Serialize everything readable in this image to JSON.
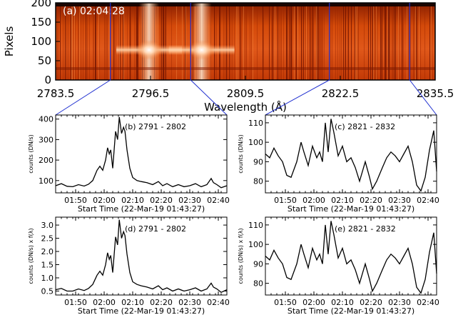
{
  "chart_data": [
    {
      "panel": "a",
      "type": "heatmap",
      "title": "(a) 02:04:28",
      "xlabel": "Wavelength (Å)",
      "ylabel": "Pixels",
      "x_tick_labels": [
        "2783.5",
        "2796.5",
        "2809.5",
        "2822.5",
        "2835.5"
      ],
      "y_tick_labels": [
        "0",
        "50",
        "100",
        "150",
        "200"
      ],
      "xlim": [
        2783.5,
        2835.5
      ],
      "ylim": [
        0,
        200
      ],
      "colormap": "red-temperature",
      "emission_lines": [
        {
          "wavelength": 2796.3,
          "y_center": 78
        },
        {
          "wavelength": 2803.5,
          "y_center": 78
        }
      ],
      "marker_wavelengths": [
        2791,
        2802,
        2821,
        2832
      ]
    },
    {
      "panel": "b",
      "type": "line",
      "title": "(b) 2791 - 2802",
      "xlabel": "Start Time (22-Mar-19 01:43:27)",
      "ylabel": "counts (DN/s)",
      "x_tick_labels": [
        "01:50",
        "02:00",
        "02:10",
        "02:20",
        "02:30",
        "02:40"
      ],
      "x_tick_values": [
        7,
        17,
        27,
        37,
        47,
        57
      ],
      "xlim": [
        0,
        60
      ],
      "y_tick_labels": [
        "100",
        "200",
        "300",
        "400"
      ],
      "y_tick_values": [
        100,
        200,
        300,
        400
      ],
      "ylim": [
        40,
        420
      ],
      "series": [
        {
          "x": [
            0,
            2,
            4,
            6,
            8,
            10,
            11.5,
            13,
            14.5,
            15.5,
            16.5,
            17.5,
            18.2,
            18.8,
            19.3,
            20,
            21,
            21.7,
            22.3,
            23.1,
            23.8,
            24.3,
            25,
            26,
            27,
            28.5,
            30,
            32,
            34,
            36,
            37.5,
            39,
            41,
            43,
            45,
            47,
            49,
            51,
            53,
            54.5,
            55.3,
            56.5,
            58,
            60
          ],
          "values": [
            75,
            85,
            72,
            70,
            80,
            73,
            82,
            100,
            150,
            170,
            150,
            200,
            260,
            230,
            250,
            160,
            340,
            300,
            410,
            330,
            360,
            340,
            250,
            160,
            115,
            100,
            95,
            90,
            80,
            95,
            75,
            85,
            70,
            80,
            70,
            75,
            85,
            70,
            80,
            110,
            90,
            80,
            65,
            75
          ]
        }
      ]
    },
    {
      "panel": "c",
      "type": "line",
      "title": "(c) 2821 - 2832",
      "xlabel": "Start Time (22-Mar-19 01:43:27)",
      "ylabel": "counts (DN/s)",
      "x_tick_labels": [
        "01:50",
        "02:00",
        "02:10",
        "02:20",
        "02:30",
        "02:40"
      ],
      "x_tick_values": [
        7,
        17,
        27,
        37,
        47,
        57
      ],
      "xlim": [
        0,
        60
      ],
      "y_tick_labels": [
        "80",
        "90",
        "100",
        "110"
      ],
      "y_tick_values": [
        80,
        90,
        100,
        110
      ],
      "ylim": [
        74,
        114
      ],
      "series": [
        {
          "x": [
            0,
            1.5,
            3,
            4.5,
            6,
            7.5,
            9,
            11,
            12.5,
            13.5,
            15,
            16.5,
            18,
            19,
            20,
            21,
            22,
            23,
            24,
            25.5,
            27,
            28.5,
            30,
            31.5,
            33,
            35,
            36.5,
            37.5,
            39,
            41,
            42.5,
            44,
            45.5,
            47,
            48.5,
            50,
            51.5,
            53,
            54.5,
            56,
            57.5,
            59,
            60
          ],
          "values": [
            94,
            92,
            97,
            93,
            90,
            83,
            82,
            90,
            100,
            95,
            88,
            98,
            92,
            95,
            90,
            110,
            95,
            112,
            105,
            93,
            98,
            90,
            92,
            87,
            80,
            90,
            82,
            76,
            80,
            87,
            92,
            95,
            93,
            90,
            94,
            98,
            90,
            78,
            75,
            82,
            96,
            106,
            85
          ]
        }
      ]
    },
    {
      "panel": "d",
      "type": "line",
      "title": "(d) 2791 - 2802",
      "xlabel": "Start Time (22-Mar-19 01:43:27)",
      "ylabel": "counts (DN/s) x f(λ)",
      "x_tick_labels": [
        "01:50",
        "02:00",
        "02:10",
        "02:20",
        "02:30",
        "02:40"
      ],
      "x_tick_values": [
        7,
        17,
        27,
        37,
        47,
        57
      ],
      "xlim": [
        0,
        60
      ],
      "y_tick_labels": [
        "0.5",
        "1.0",
        "1.5",
        "2.0",
        "2.5",
        "3.0"
      ],
      "y_tick_values": [
        0.5,
        1.0,
        1.5,
        2.0,
        2.5,
        3.0
      ],
      "ylim": [
        0.35,
        3.3
      ],
      "series": [
        {
          "x": [
            0,
            2,
            4,
            6,
            8,
            10,
            11.5,
            13,
            14.5,
            15.5,
            16.5,
            17.5,
            18.2,
            18.8,
            19.3,
            20,
            21,
            21.7,
            22.3,
            23.1,
            23.8,
            24.3,
            25,
            26,
            27,
            28.5,
            30,
            32,
            34,
            36,
            37.5,
            39,
            41,
            43,
            45,
            47,
            49,
            51,
            53,
            54.5,
            55.3,
            56.5,
            58,
            60
          ],
          "values": [
            0.55,
            0.6,
            0.5,
            0.5,
            0.58,
            0.52,
            0.6,
            0.75,
            1.1,
            1.25,
            1.1,
            1.5,
            1.95,
            1.7,
            1.85,
            1.2,
            2.55,
            2.25,
            3.2,
            2.5,
            2.75,
            2.6,
            1.9,
            1.2,
            0.85,
            0.75,
            0.7,
            0.65,
            0.58,
            0.7,
            0.55,
            0.62,
            0.5,
            0.58,
            0.5,
            0.55,
            0.62,
            0.5,
            0.58,
            0.8,
            0.65,
            0.58,
            0.45,
            0.55
          ]
        }
      ]
    },
    {
      "panel": "e",
      "type": "line",
      "title": "(e) 2821 - 2832",
      "xlabel": "Start Time (22-Mar-19 01:43:27)",
      "ylabel": "counts (DN/s) x f(λ)",
      "x_tick_labels": [
        "01:50",
        "02:00",
        "02:10",
        "02:20",
        "02:30",
        "02:40"
      ],
      "x_tick_values": [
        7,
        17,
        27,
        37,
        47,
        57
      ],
      "xlim": [
        0,
        60
      ],
      "y_tick_labels": [
        "80",
        "90",
        "100",
        "110"
      ],
      "y_tick_values": [
        80,
        90,
        100,
        110
      ],
      "ylim": [
        74,
        114
      ],
      "series": [
        {
          "x": [
            0,
            1.5,
            3,
            4.5,
            6,
            7.5,
            9,
            11,
            12.5,
            13.5,
            15,
            16.5,
            18,
            19,
            20,
            21,
            22,
            23,
            24,
            25.5,
            27,
            28.5,
            30,
            31.5,
            33,
            35,
            36.5,
            37.5,
            39,
            41,
            42.5,
            44,
            45.5,
            47,
            48.5,
            50,
            51.5,
            53,
            54.5,
            56,
            57.5,
            59,
            60
          ],
          "values": [
            94,
            92,
            97,
            93,
            90,
            83,
            82,
            90,
            100,
            95,
            88,
            98,
            92,
            95,
            90,
            110,
            95,
            112,
            105,
            93,
            98,
            90,
            92,
            87,
            80,
            90,
            82,
            76,
            80,
            87,
            92,
            95,
            93,
            90,
            94,
            98,
            90,
            78,
            75,
            82,
            96,
            106,
            85
          ]
        }
      ]
    }
  ]
}
